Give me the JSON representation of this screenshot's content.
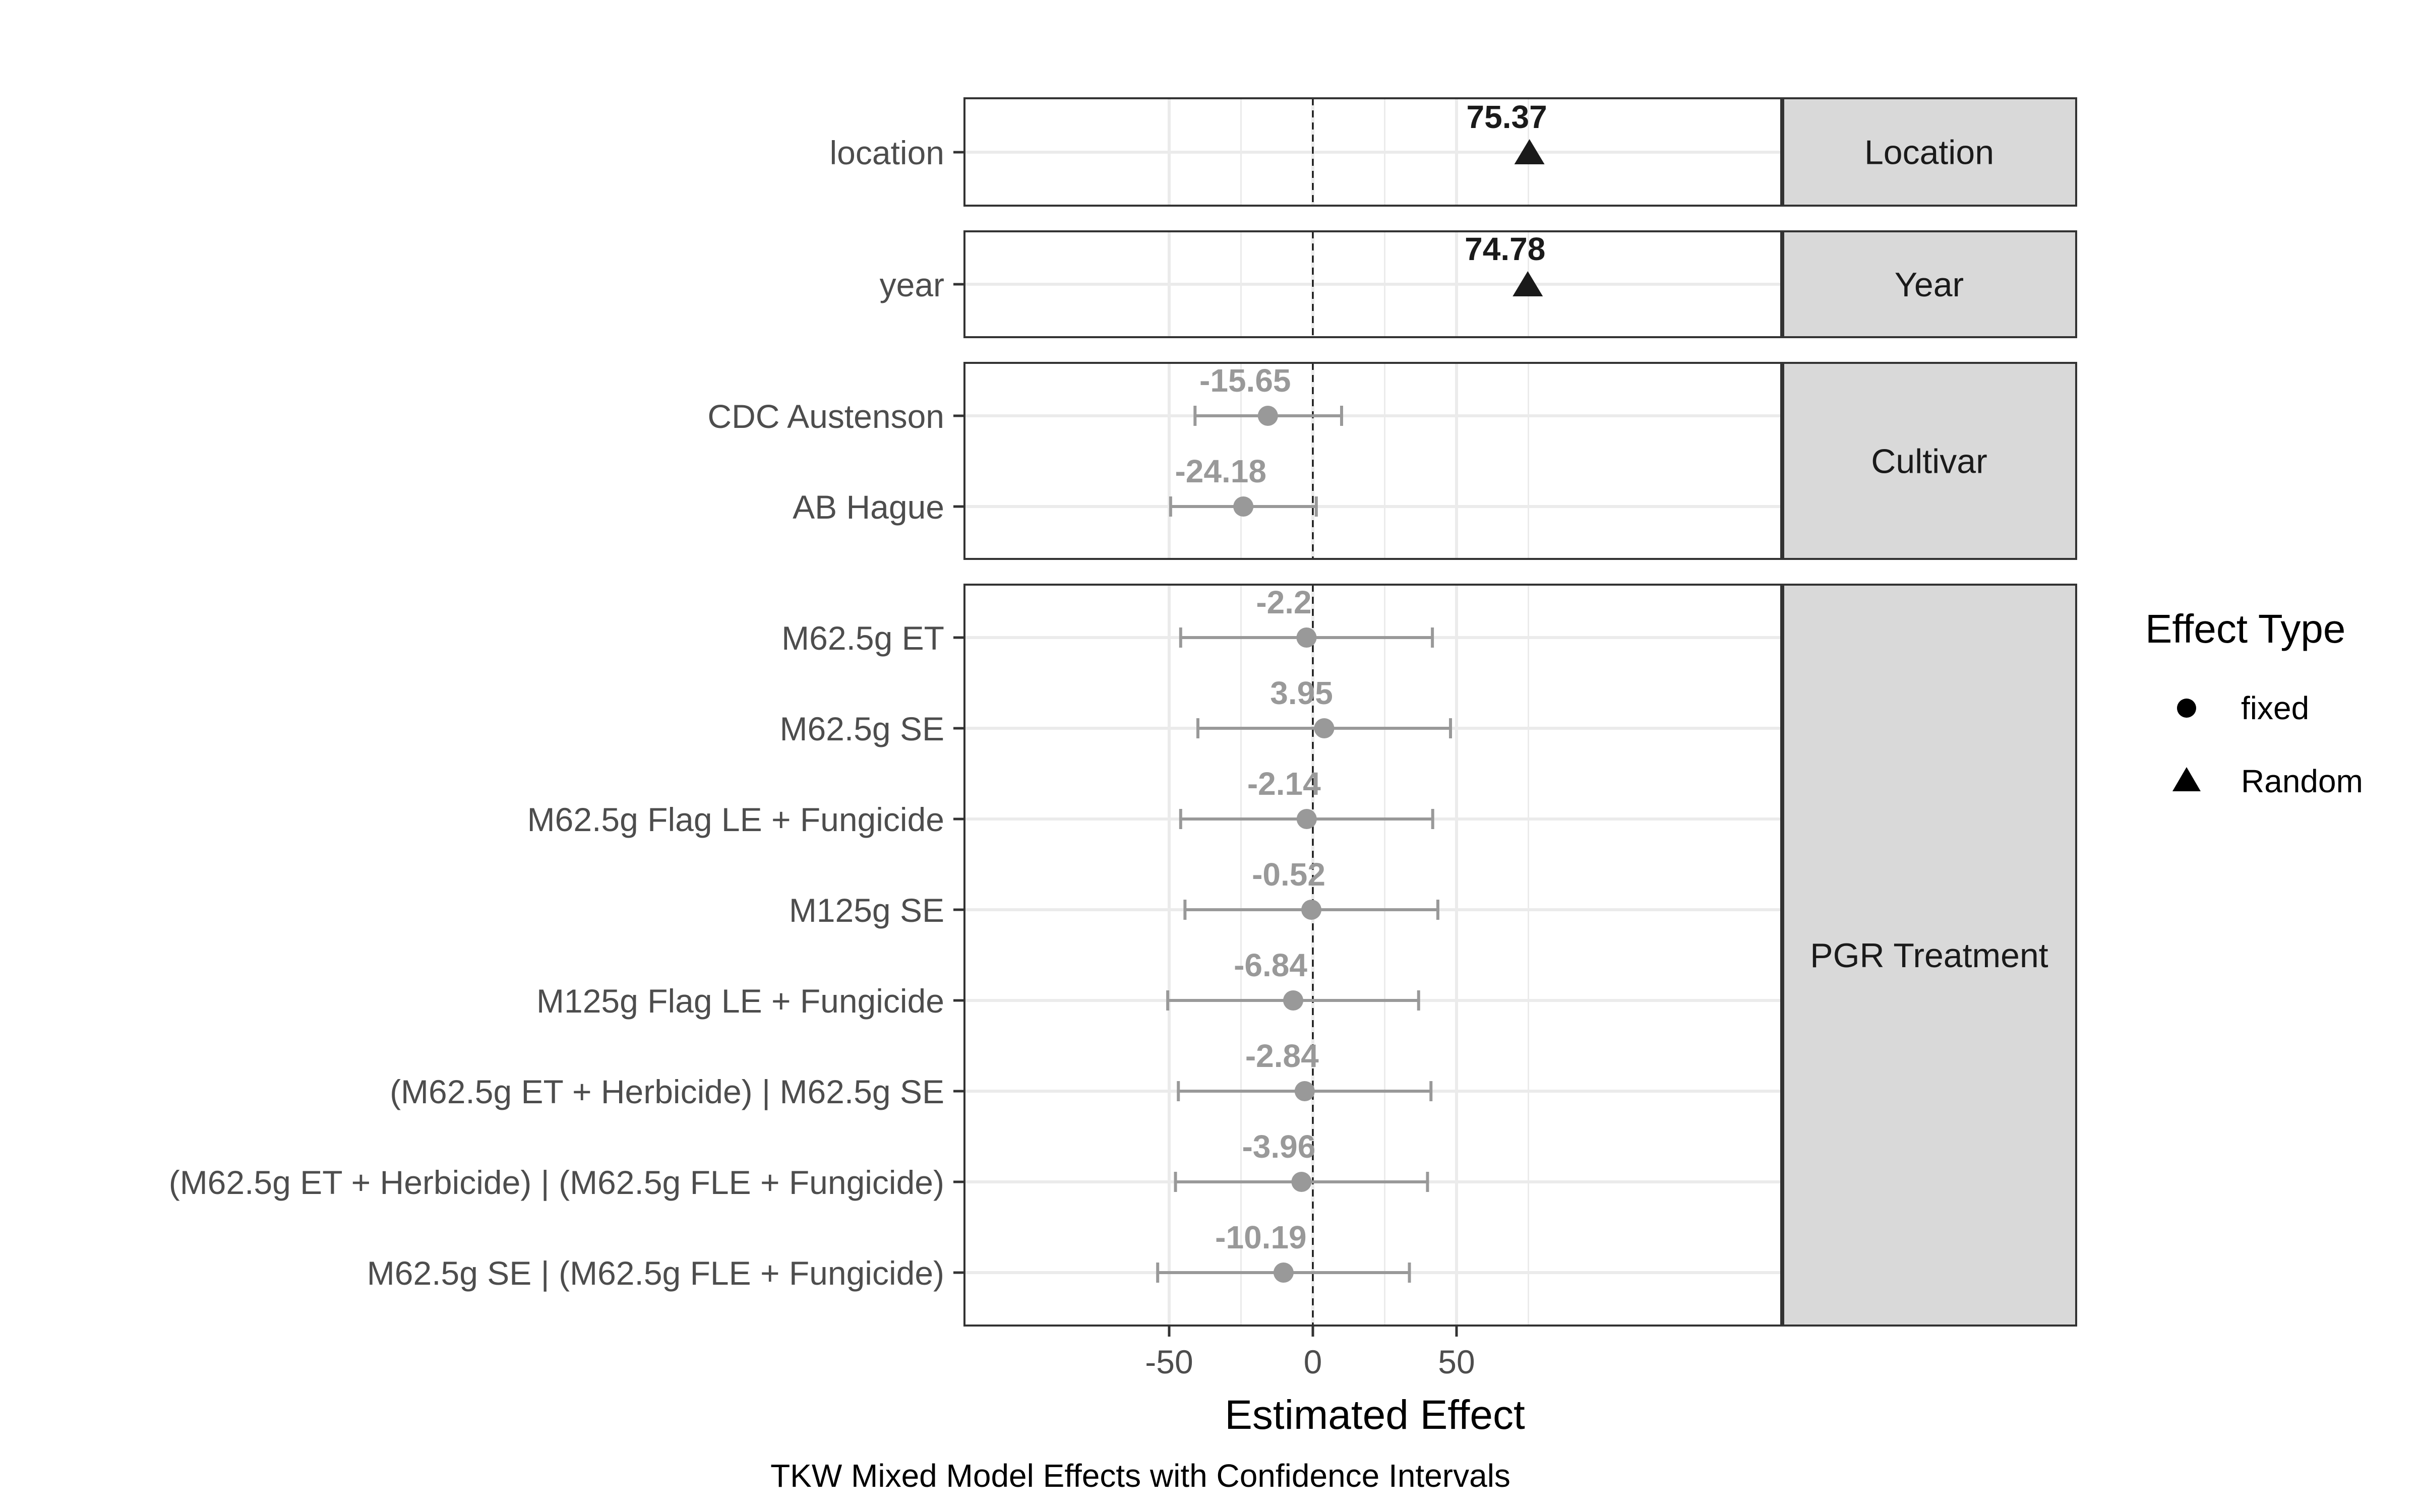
{
  "chart_data": {
    "type": "forest",
    "xlabel": "Estimated Effect",
    "caption": "TKW Mixed Model Effects with Confidence Intervals",
    "xlim": [
      -60,
      82
    ],
    "xticks": [
      -50,
      0,
      50
    ],
    "xtick_labels": [
      "-50",
      "0",
      "50"
    ],
    "reference_line": 0,
    "colors": {
      "fixed": "#999999",
      "random": "#1a1a1a",
      "strip": "#d9d9d9",
      "grid": "#ebebeb"
    },
    "legend": {
      "title": "Effect Type",
      "position": "right",
      "items": [
        {
          "label": "fixed",
          "shape": "circle"
        },
        {
          "label": "Random",
          "shape": "triangle"
        }
      ]
    },
    "panels": [
      {
        "strip": "Location",
        "terms": [
          {
            "term": "location",
            "estimate": 75.37,
            "label": "75.37",
            "type": "Random"
          }
        ]
      },
      {
        "strip": "Year",
        "terms": [
          {
            "term": "year",
            "estimate": 74.78,
            "label": "74.78",
            "type": "Random"
          }
        ]
      },
      {
        "strip": "Cultivar",
        "terms": [
          {
            "term": "CDC Austenson",
            "estimate": -15.65,
            "label": "-15.65",
            "ci_low": -41,
            "ci_high": 10,
            "type": "fixed"
          },
          {
            "term": "AB Hague",
            "estimate": -24.18,
            "label": "-24.18",
            "ci_low": -49.5,
            "ci_high": 1.2,
            "type": "fixed"
          }
        ]
      },
      {
        "strip": "PGR Treatment",
        "terms": [
          {
            "term": "M62.5g ET",
            "estimate": -2.2,
            "label": "-2.2",
            "ci_low": -46,
            "ci_high": 41.6,
            "type": "fixed"
          },
          {
            "term": "M62.5g SE",
            "estimate": 3.95,
            "label": "3.95",
            "ci_low": -40,
            "ci_high": 47.9,
            "type": "fixed"
          },
          {
            "term": "M62.5g Flag LE + Fungicide",
            "estimate": -2.14,
            "label": "-2.14",
            "ci_low": -46,
            "ci_high": 41.7,
            "type": "fixed"
          },
          {
            "term": "M125g SE",
            "estimate": -0.52,
            "label": "-0.52",
            "ci_low": -44.5,
            "ci_high": 43.5,
            "type": "fixed"
          },
          {
            "term": "M125g Flag LE + Fungicide",
            "estimate": -6.84,
            "label": "-6.84",
            "ci_low": -50.5,
            "ci_high": 36.8,
            "type": "fixed"
          },
          {
            "term": "(M62.5g ET + Herbicide) | M62.5g SE",
            "estimate": -2.84,
            "label": "-2.84",
            "ci_low": -46.8,
            "ci_high": 41.1,
            "type": "fixed"
          },
          {
            "term": "(M62.5g ET + Herbicide) | (M62.5g FLE + Fungicide)",
            "estimate": -3.96,
            "label": "-3.96",
            "ci_low": -47.8,
            "ci_high": 39.9,
            "type": "fixed"
          },
          {
            "term": "M62.5g SE | (M62.5g FLE + Fungicide)",
            "estimate": -10.19,
            "label": "-10.19",
            "ci_low": -54,
            "ci_high": 33.6,
            "type": "fixed"
          }
        ]
      }
    ]
  }
}
